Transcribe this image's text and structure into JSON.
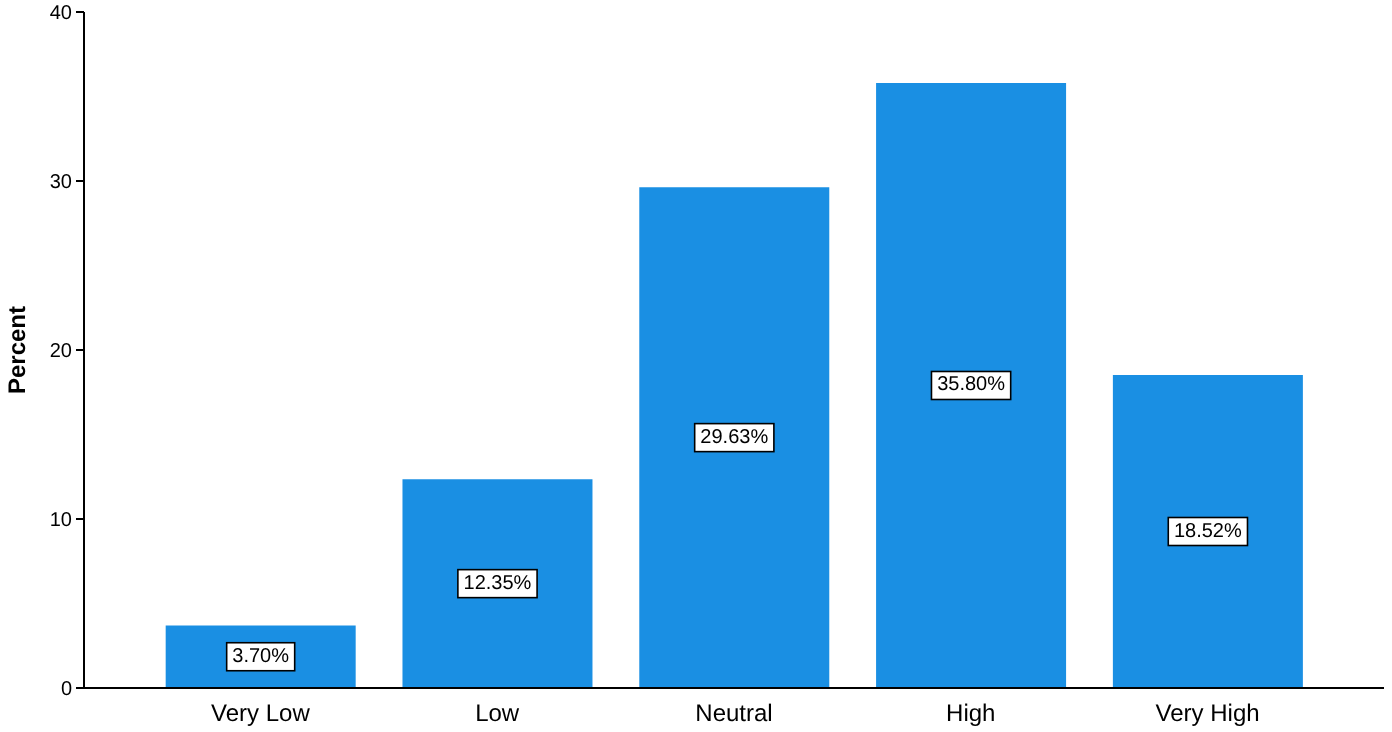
{
  "chart_data": {
    "type": "bar",
    "ylabel": "Percent",
    "categories": [
      "Very Low",
      "Low",
      "Neutral",
      "High",
      "Very High"
    ],
    "values": [
      3.7,
      12.35,
      29.63,
      35.8,
      18.52
    ],
    "value_labels": [
      "3.70%",
      "12.35%",
      "29.63%",
      "35.80%",
      "18.52%"
    ],
    "color": "#1a8fe3",
    "ylim": [
      0,
      40
    ],
    "yticks": [
      0,
      10,
      20,
      30,
      40
    ],
    "grid": false,
    "legend": false
  }
}
